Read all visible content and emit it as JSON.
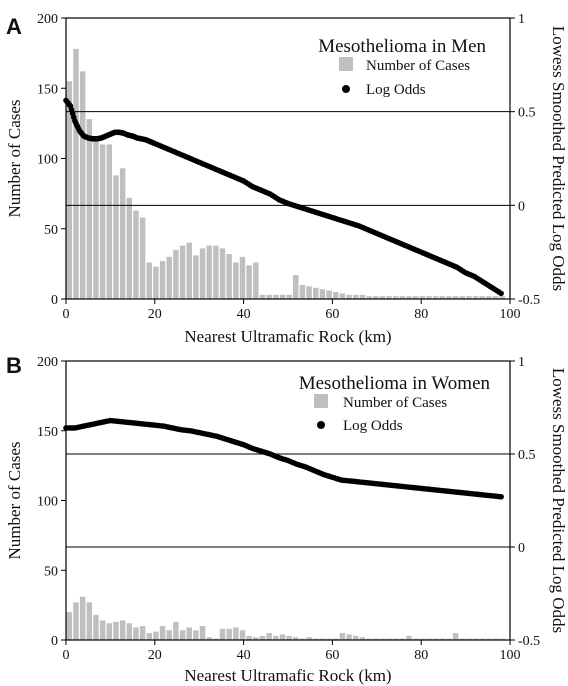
{
  "colors": {
    "bar": "#bfbfbf",
    "point": "#000000",
    "line": "#000000",
    "background": "#ffffff"
  },
  "chart_data": [
    {
      "type": "bar",
      "panel_label": "A",
      "title": "Mesothelioma in Men",
      "xlabel": "Nearest Ultramafic Rock (km)",
      "ylabel": "Number of Cases",
      "y2label": "Lowess Smoothed Predicted Log Odds",
      "xlim": [
        0,
        100
      ],
      "ylim": [
        0,
        200
      ],
      "y2lim": [
        -0.5,
        1
      ],
      "xticks": [
        "0",
        "20",
        "40",
        "60",
        "80",
        "100"
      ],
      "yticks": [
        "0",
        "50",
        "100",
        "150",
        "200"
      ],
      "y2ticks": [
        "-0.5",
        "0",
        "0.5",
        "1"
      ],
      "y2_gridlines": [
        -0.5,
        0,
        0.5
      ],
      "legend": {
        "position": "top-right",
        "bar_label": "Number of Cases",
        "point_label": "Log Odds"
      },
      "bars": {
        "name": "Number of Cases",
        "bin_width": 1.5,
        "x": [
          0,
          1.5,
          3,
          4.5,
          6,
          7.5,
          9,
          10.5,
          12,
          13.5,
          15,
          16.5,
          18,
          19.5,
          21,
          22.5,
          24,
          25.5,
          27,
          28.5,
          30,
          31.5,
          33,
          34.5,
          36,
          37.5,
          39,
          40.5,
          42,
          43.5,
          45,
          46.5,
          48,
          49.5,
          51,
          52.5,
          54,
          55.5,
          57,
          58.5,
          60,
          61.5,
          63,
          64.5,
          66,
          67.5,
          69,
          70.5,
          72,
          73.5,
          75,
          76.5,
          78,
          79.5,
          81,
          82.5,
          84,
          85.5,
          87,
          88.5,
          90,
          91.5,
          93,
          94.5,
          96,
          97.5
        ],
        "values": [
          155,
          178,
          162,
          128,
          115,
          110,
          110,
          88,
          93,
          72,
          63,
          58,
          26,
          23,
          27,
          30,
          35,
          38,
          40,
          31,
          36,
          38,
          38,
          36,
          32,
          26,
          30,
          24,
          26,
          3,
          3,
          3,
          3,
          3,
          17,
          10,
          9,
          8,
          7,
          6,
          5,
          4,
          3,
          3,
          3,
          2,
          2,
          2,
          2,
          2,
          2,
          2,
          2,
          2,
          2,
          2,
          2,
          2,
          2,
          2,
          2,
          2,
          2,
          2,
          2,
          2
        ]
      },
      "log_odds": {
        "name": "Log Odds",
        "x": [
          0,
          1,
          2,
          3,
          4,
          5,
          6,
          7,
          8,
          9,
          10,
          11,
          12,
          13,
          14,
          15,
          16,
          17,
          18,
          19,
          20,
          22,
          24,
          26,
          28,
          30,
          32,
          34,
          36,
          38,
          40,
          42,
          44,
          46,
          48,
          50,
          52,
          54,
          56,
          58,
          60,
          62,
          64,
          66,
          68,
          70,
          72,
          74,
          76,
          78,
          80,
          82,
          84,
          86,
          88,
          90,
          92,
          94,
          96,
          98
        ],
        "y": [
          0.56,
          0.53,
          0.45,
          0.4,
          0.37,
          0.36,
          0.355,
          0.355,
          0.36,
          0.37,
          0.38,
          0.39,
          0.39,
          0.385,
          0.375,
          0.37,
          0.36,
          0.355,
          0.35,
          0.34,
          0.33,
          0.31,
          0.29,
          0.27,
          0.25,
          0.23,
          0.21,
          0.19,
          0.17,
          0.15,
          0.13,
          0.1,
          0.08,
          0.06,
          0.03,
          0.01,
          -0.005,
          -0.02,
          -0.035,
          -0.05,
          -0.065,
          -0.08,
          -0.095,
          -0.11,
          -0.13,
          -0.15,
          -0.17,
          -0.19,
          -0.21,
          -0.23,
          -0.25,
          -0.27,
          -0.29,
          -0.31,
          -0.33,
          -0.36,
          -0.38,
          -0.41,
          -0.44,
          -0.47
        ]
      }
    },
    {
      "type": "bar",
      "panel_label": "B",
      "title": "Mesothelioma in Women",
      "xlabel": "Nearest Ultramafic Rock (km)",
      "ylabel": "Number of Cases",
      "y2label": "Lowess Smoothed Predicted Log Odds",
      "xlim": [
        0,
        100
      ],
      "ylim": [
        0,
        200
      ],
      "y2lim": [
        -0.5,
        1
      ],
      "xticks": [
        "0",
        "20",
        "40",
        "60",
        "80",
        "100"
      ],
      "yticks": [
        "0",
        "50",
        "100",
        "150",
        "200"
      ],
      "y2ticks": [
        "-0.5",
        "0",
        "0.5",
        "1"
      ],
      "y2_gridlines": [
        0,
        0.5
      ],
      "legend": {
        "position": "top-right",
        "bar_label": "Number of Cases",
        "point_label": "Log Odds"
      },
      "bars": {
        "name": "Number of Cases",
        "bin_width": 1.5,
        "x": [
          0,
          1.5,
          3,
          4.5,
          6,
          7.5,
          9,
          10.5,
          12,
          13.5,
          15,
          16.5,
          18,
          19.5,
          21,
          22.5,
          24,
          25.5,
          27,
          28.5,
          30,
          31.5,
          33,
          34.5,
          36,
          37.5,
          39,
          40.5,
          42,
          43.5,
          45,
          46.5,
          48,
          49.5,
          51,
          52.5,
          54,
          55.5,
          57,
          58.5,
          60,
          61.5,
          63,
          64.5,
          66,
          67.5,
          69,
          70.5,
          72,
          73.5,
          75,
          76.5,
          78,
          79.5,
          81,
          82.5,
          84,
          85.5,
          87,
          88.5,
          90,
          91.5,
          93,
          94.5,
          96,
          97.5
        ],
        "values": [
          20,
          27,
          31,
          27,
          18,
          14,
          12,
          13,
          14,
          12,
          9,
          10,
          5,
          6,
          10,
          7,
          13,
          7,
          9,
          7,
          10,
          2,
          1,
          8,
          8,
          9,
          7,
          3,
          2,
          3,
          5,
          3,
          4,
          3,
          2,
          1,
          2,
          1,
          1,
          1,
          1,
          5,
          4,
          3,
          2,
          1,
          1,
          1,
          1,
          1,
          1,
          3,
          1,
          1,
          1,
          1,
          1,
          1,
          5,
          1,
          1,
          1,
          1,
          1,
          1,
          1
        ]
      },
      "log_odds": {
        "name": "Log Odds",
        "x": [
          0,
          2,
          4,
          6,
          8,
          10,
          12,
          14,
          16,
          18,
          20,
          22,
          24,
          26,
          28,
          30,
          32,
          34,
          36,
          38,
          40,
          42,
          44,
          46,
          48,
          50,
          52,
          54,
          56,
          58,
          60,
          62,
          64,
          66,
          68,
          70,
          72,
          74,
          76,
          78,
          80,
          82,
          84,
          86,
          88,
          90,
          92,
          94,
          96,
          98
        ],
        "y": [
          0.64,
          0.64,
          0.65,
          0.66,
          0.67,
          0.68,
          0.675,
          0.67,
          0.665,
          0.66,
          0.655,
          0.65,
          0.64,
          0.63,
          0.625,
          0.615,
          0.605,
          0.595,
          0.58,
          0.565,
          0.55,
          0.53,
          0.515,
          0.5,
          0.48,
          0.465,
          0.445,
          0.43,
          0.41,
          0.39,
          0.375,
          0.36,
          0.355,
          0.35,
          0.345,
          0.34,
          0.335,
          0.33,
          0.325,
          0.32,
          0.315,
          0.31,
          0.305,
          0.3,
          0.295,
          0.29,
          0.285,
          0.28,
          0.275,
          0.27
        ]
      }
    }
  ]
}
